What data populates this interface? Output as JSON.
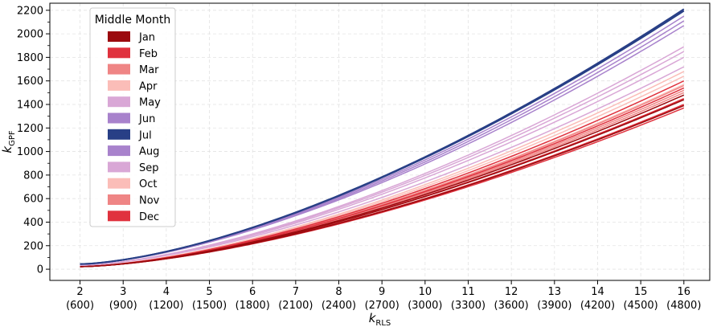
{
  "chart_data": {
    "type": "line",
    "xlabel_main": "k",
    "xlabel_sub": "RLS",
    "ylabel_main": "k",
    "ylabel_sub": "GPF",
    "x": [
      2,
      3,
      4,
      5,
      6,
      7,
      8,
      9,
      10,
      11,
      12,
      13,
      14,
      15,
      16
    ],
    "x_tick_labels": [
      "2",
      "3",
      "4",
      "5",
      "6",
      "7",
      "8",
      "9",
      "10",
      "11",
      "12",
      "13",
      "14",
      "15",
      "16"
    ],
    "x_tick_sublabels": [
      "(600)",
      "(900)",
      "(1200)",
      "(1500)",
      "(1800)",
      "(2100)",
      "(2400)",
      "(2700)",
      "(3000)",
      "(3300)",
      "(3600)",
      "(3900)",
      "(4200)",
      "(4500)",
      "(4800)"
    ],
    "xlim": [
      1.3,
      16.6
    ],
    "ylim": [
      -95,
      2260
    ],
    "y_ticks": [
      0,
      200,
      400,
      600,
      800,
      1000,
      1200,
      1400,
      1600,
      1800,
      2000,
      2200
    ],
    "y_tick_labels": [
      "0",
      "200",
      "400",
      "600",
      "800",
      "1000",
      "1200",
      "1400",
      "1600",
      "1800",
      "2000",
      "2200"
    ],
    "y_minor_step": 100,
    "grid": true,
    "legend": {
      "title": "Middle Month",
      "placement": "upper-left",
      "entries": [
        {
          "label": "Jan",
          "color": "#9b0a0e"
        },
        {
          "label": "Feb",
          "color": "#e0323e"
        },
        {
          "label": "Mar",
          "color": "#ef8585"
        },
        {
          "label": "Apr",
          "color": "#fbbdb8"
        },
        {
          "label": "May",
          "color": "#d9a7d6"
        },
        {
          "label": "Jun",
          "color": "#a882cc"
        },
        {
          "label": "Jul",
          "color": "#283f86"
        },
        {
          "label": "Aug",
          "color": "#a882cc"
        },
        {
          "label": "Sep",
          "color": "#d9a7d6"
        },
        {
          "label": "Oct",
          "color": "#fbbdb8"
        },
        {
          "label": "Nov",
          "color": "#ef8585"
        },
        {
          "label": "Dec",
          "color": "#e0323e"
        }
      ]
    },
    "series": [
      {
        "color": "#fbbdb8",
        "end": 1680
      },
      {
        "color": "#fbbdb8",
        "end": 1640
      },
      {
        "color": "#fbbdb8",
        "end": 1570
      },
      {
        "color": "#ef8585",
        "end": 1560
      },
      {
        "color": "#ef8585",
        "end": 1520
      },
      {
        "color": "#ef8585",
        "end": 1500
      },
      {
        "color": "#e0323e",
        "end": 1600
      },
      {
        "color": "#e0323e",
        "end": 1540
      },
      {
        "color": "#e0323e",
        "end": 1450
      },
      {
        "color": "#e0323e",
        "end": 1400
      },
      {
        "color": "#e0323e",
        "end": 1370
      },
      {
        "color": "#9b0a0e",
        "end": 1480
      },
      {
        "color": "#9b0a0e",
        "end": 1440
      },
      {
        "color": "#9b0a0e",
        "end": 1390
      },
      {
        "color": "#d9a7d6",
        "end": 1890
      },
      {
        "color": "#d9a7d6",
        "end": 1850
      },
      {
        "color": "#d9a7d6",
        "end": 1800
      },
      {
        "color": "#d9a7d6",
        "end": 1720
      },
      {
        "color": "#a882cc",
        "end": 2150
      },
      {
        "color": "#a882cc",
        "end": 2110
      },
      {
        "color": "#a882cc",
        "end": 2070
      },
      {
        "color": "#283f86",
        "end": 2210
      },
      {
        "color": "#283f86",
        "end": 2195
      }
    ]
  }
}
